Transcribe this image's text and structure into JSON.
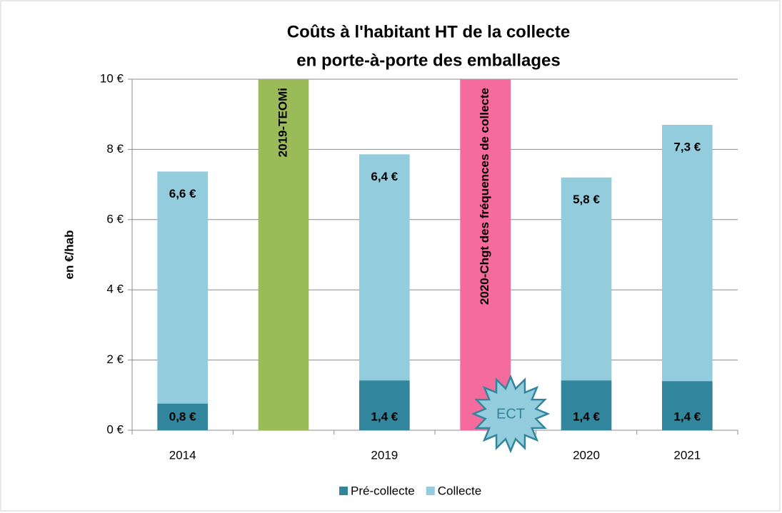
{
  "chart_data": {
    "type": "stacked_bar",
    "title": [
      "Coûts à l'habitant HT de la collecte",
      "en porte-à-porte des emballages"
    ],
    "ylabel": "en €/hab",
    "categories": [
      "2014",
      null,
      "2019",
      null,
      "2020",
      "2021"
    ],
    "series": [
      {
        "name": "Pré-collecte",
        "color": "#31859c",
        "values": [
          0.76,
          null,
          1.42,
          null,
          1.42,
          1.4
        ],
        "value_labels": [
          "0,8 €",
          null,
          "1,4 €",
          null,
          "1,4 €",
          "1,4 €"
        ]
      },
      {
        "name": "Collecte",
        "color": "#93cddd",
        "values": [
          6.61,
          null,
          6.44,
          null,
          5.78,
          7.3
        ],
        "value_labels": [
          "6,6 €",
          null,
          "6,4 €",
          null,
          "5,8 €",
          "7,3 €"
        ]
      }
    ],
    "highlight_bars": {
      "values": [
        null,
        10,
        null,
        10,
        null,
        null
      ],
      "labels": [
        null,
        "2019-TEOMi",
        null,
        "2020-Chgt des fréquences de collecte",
        null,
        null
      ],
      "colors": [
        null,
        "#9bbb59",
        null,
        "#f56b9c",
        null,
        null
      ]
    },
    "annotation": "ECT",
    "ylim": [
      0,
      10
    ],
    "yticks": [
      {
        "value": 0,
        "label": "0 €"
      },
      {
        "value": 2,
        "label": "2 €"
      },
      {
        "value": 4,
        "label": "4 €"
      },
      {
        "value": 6,
        "label": "6 €"
      },
      {
        "value": 8,
        "label": "8 €"
      },
      {
        "value": 10,
        "label": "10 €"
      }
    ],
    "grid": true,
    "legend": "bottom"
  }
}
